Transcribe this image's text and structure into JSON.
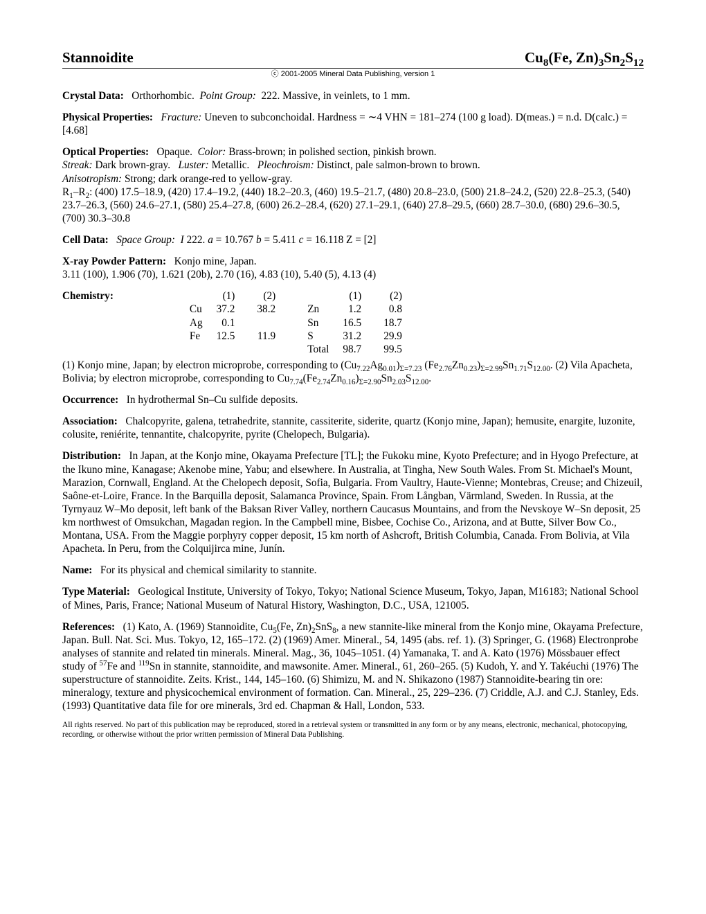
{
  "header": {
    "name": "Stannoidite",
    "formula_html": "Cu<sub>8</sub>(Fe, Zn)<sub>3</sub>Sn<sub>2</sub>S<sub>12</sub>"
  },
  "copyright": "ⓒ 2001-2005 Mineral Data Publishing, version 1",
  "crystal_data": {
    "label": "Crystal Data:",
    "text": "Orthorhombic.",
    "pg_label": "Point Group:",
    "pg_text": "222.   Massive, in veinlets, to 1 mm."
  },
  "physical": {
    "label": "Physical Properties:",
    "fracture_label": "Fracture:",
    "fracture_text": "Uneven to subconchoidal.   Hardness = ∼4   VHN = 181–274 (100 g load).    D(meas.) = n.d.   D(calc.) = [4.68]"
  },
  "optical": {
    "label": "Optical Properties:",
    "opaque": "Opaque.",
    "color_label": "Color:",
    "color_text": "Brass-brown; in polished section, pinkish brown.",
    "streak_label": "Streak:",
    "streak_text": "Dark brown-gray.",
    "luster_label": "Luster:",
    "luster_text": "Metallic.",
    "pleo_label": "Pleochroism:",
    "pleo_text": "Distinct, pale salmon-brown to brown.",
    "aniso_label": "Anisotropism:",
    "aniso_text": "Strong; dark orange-red to yellow-gray.",
    "r_html": "R<sub>1</sub>–R<sub>2</sub>: (400) 17.5–18.9, (420) 17.4–19.2, (440) 18.2–20.3, (460) 19.5–21.7, (480) 20.8–23.0, (500) 21.8–24.2, (520) 22.8–25.3, (540) 23.7–26.3, (560) 24.6–27.1, (580) 25.4–27.8, (600) 26.2–28.4, (620) 27.1–29.1, (640) 27.8–29.5, (660) 28.7–30.0, (680) 29.6–30.5, (700) 30.3–30.8"
  },
  "cell": {
    "label": "Cell Data:",
    "sg_label": "Space Group:",
    "sg_html": "<i>I</i> 222.    <i>a</i> = 10.767    <i>b</i> = 5.411    <i>c</i> = 16.118    Z = [2]"
  },
  "xray": {
    "label": "X-ray Powder Pattern:",
    "loc": "Konjo mine, Japan.",
    "pattern": "3.11 (100), 1.906 (70), 1.621 (20b), 2.70 (16), 4.83 (10), 5.40 (5), 4.13 (4)"
  },
  "chemistry": {
    "label": "Chemistry:",
    "headers": [
      "(1)",
      "(2)",
      "(1)",
      "(2)"
    ],
    "left": [
      {
        "el": "Cu",
        "c1": "37.2",
        "c2": "38.2"
      },
      {
        "el": "Ag",
        "c1": "0.1",
        "c2": ""
      },
      {
        "el": "Fe",
        "c1": "12.5",
        "c2": "11.9"
      }
    ],
    "right": [
      {
        "el": "Zn",
        "c1": "1.2",
        "c2": "0.8"
      },
      {
        "el": "Sn",
        "c1": "16.5",
        "c2": "18.7"
      },
      {
        "el": "S",
        "c1": "31.2",
        "c2": "29.9"
      },
      {
        "el": "Total",
        "c1": "98.7",
        "c2": "99.5"
      }
    ],
    "note_html": "(1) Konjo mine, Japan; by electron microprobe, corresponding to (Cu<sub>7.22</sub>Ag<sub>0.01</sub>)<sub>Σ=7.23</sub> (Fe<sub>2.76</sub>Zn<sub>0.23</sub>)<sub>Σ=2.99</sub>Sn<sub>1.71</sub>S<sub>12.00</sub>. (2) Vila Apacheta, Bolivia; by electron microprobe, corresponding to Cu<sub>7.74</sub>(Fe<sub>2.74</sub>Zn<sub>0.16</sub>)<sub>Σ=2.90</sub>Sn<sub>2.03</sub>S<sub>12.00</sub>."
  },
  "occurrence": {
    "label": "Occurrence:",
    "text": "In hydrothermal Sn–Cu sulfide deposits."
  },
  "association": {
    "label": "Association:",
    "text": "Chalcopyrite, galena, tetrahedrite, stannite, cassiterite, siderite, quartz (Konjo mine, Japan); hemusite, enargite, luzonite, colusite, reniérite, tennantite, chalcopyrite, pyrite (Chelopech, Bulgaria)."
  },
  "distribution": {
    "label": "Distribution:",
    "text": "In Japan, at the Konjo mine, Okayama Prefecture [TL]; the Fukoku mine, Kyoto Prefecture; and in Hyogo Prefecture, at the Ikuno mine, Kanagase; Akenobe mine, Yabu; and elsewhere. In Australia, at Tingha, New South Wales. From St. Michael's Mount, Marazion, Cornwall, England. At the Chelopech deposit, Sofia, Bulgaria. From Vaultry, Haute-Vienne; Montebras, Creuse; and Chizeuil, Saône-et-Loire, France. In the Barquilla deposit, Salamanca Province, Spain. From Långban, Värmland, Sweden. In Russia, at the Tyrnyauz W–Mo deposit, left bank of the Baksan River Valley, northern Caucasus Mountains, and from the Nevskoye W–Sn deposit, 25 km northwest of Omsukchan, Magadan region. In the Campbell mine, Bisbee, Cochise Co., Arizona, and at Butte, Silver Bow Co., Montana, USA. From the Maggie porphyry copper deposit, 15 km north of Ashcroft, British Columbia, Canada. From Bolivia, at Vila Apacheta. In Peru, from the Colquijirca mine, Junín."
  },
  "name": {
    "label": "Name:",
    "text": "For its physical and chemical similarity to stannite."
  },
  "type_material": {
    "label": "Type Material:",
    "text": "Geological Institute, University of Tokyo, Tokyo; National Science Museum, Tokyo, Japan, M16183; National School of Mines, Paris, France; National Museum of Natural History, Washington, D.C., USA, 121005."
  },
  "references": {
    "label": "References:",
    "html": "(1) Kato, A. (1969) Stannoidite, Cu<sub>5</sub>(Fe, Zn)<sub>2</sub>SnS<sub>8</sub>, a new stannite-like mineral from the Konjo mine, Okayama Prefecture, Japan. Bull. Nat. Sci. Mus. Tokyo, 12, 165–172. (2) (1969) Amer. Mineral., 54, 1495 (abs. ref. 1). (3) Springer, G. (1968) Electronprobe analyses of stannite and related tin minerals. Mineral. Mag., 36, 1045–1051. (4) Yamanaka, T. and A. Kato (1976) Mössbauer effect study of <sup>57</sup>Fe and <sup>119</sup>Sn in stannite, stannoidite, and mawsonite. Amer. Mineral., 61, 260–265. (5) Kudoh, Y. and Y. Takéuchi (1976) The superstructure of stannoidite. Zeits. Krist., 144, 145–160. (6) Shimizu, M. and N. Shikazono (1987) Stannoidite-bearing tin ore: mineralogy, texture and physicochemical environment of formation. Can. Mineral., 25, 229–236. (7) Criddle, A.J. and C.J. Stanley, Eds. (1993) Quantitative data file for ore minerals, 3rd ed. Chapman & Hall, London, 533."
  },
  "footer": "All rights reserved. No part of this publication may be reproduced, stored in a retrieval system or transmitted in any form or by any means, electronic, mechanical, photocopying, recording, or otherwise without the prior written permission of Mineral Data Publishing."
}
